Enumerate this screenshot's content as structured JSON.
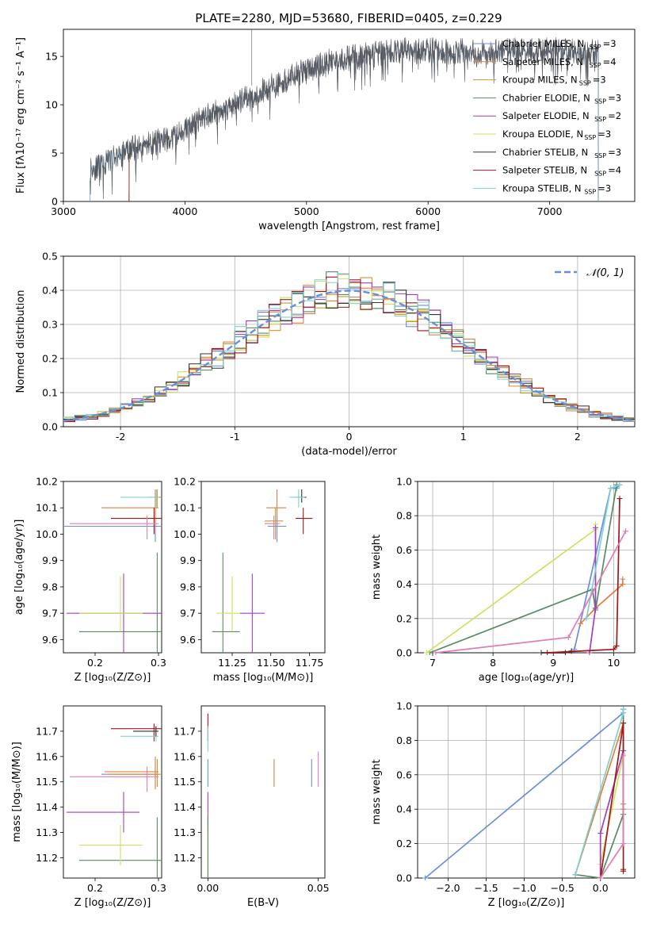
{
  "figure": {
    "title": "PLATE=2280, MJD=53680, FIBERID=0405, z=0.229"
  },
  "colors": {
    "Chabrier MILES": "#6a8fd8",
    "Salpeter MILES": "#e08040",
    "Kroupa MILES": "#d2962a",
    "Chabrier ELODIE": "#5a8a62",
    "Salpeter ELODIE": "#a040c0",
    "Kroupa ELODIE": "#cfe060",
    "Chabrier STELIB": "#333333",
    "Salpeter STELIB": "#a01818",
    "Kroupa STELIB": "#80d0d0",
    "pink": "#e07cb8",
    "grid": "#b0b0b0"
  },
  "chart_data": [
    {
      "id": "spectrum",
      "type": "line",
      "title": "PLATE=2280, MJD=53680, FIBERID=0405, z=0.229",
      "xlabel": "wavelength [Angstrom, rest frame]",
      "ylabel": "Flux [fλ10⁻¹⁷ erg cm⁻² s⁻¹ A⁻¹]",
      "xlim": [
        3000,
        7700
      ],
      "ylim": [
        0,
        17.8
      ],
      "xticks": [
        3000,
        4000,
        5000,
        6000,
        7000
      ],
      "yticks": [
        0,
        5,
        10,
        15
      ],
      "grid": false,
      "legend_position": "top-right",
      "legend": [
        {
          "model": "Chabrier MILES",
          "label": "Chabrier MILES, N",
          "sub": "SSP",
          "tail": "=3"
        },
        {
          "model": "Salpeter MILES",
          "label": "Salpeter MILES, N",
          "sub": "SSP",
          "tail": "=4"
        },
        {
          "model": "Kroupa MILES",
          "label": "Kroupa MILES, N",
          "sub": "SSP",
          "tail": "=3"
        },
        {
          "model": "Chabrier ELODIE",
          "label": "Chabrier ELODIE, N",
          "sub": "SSP",
          "tail": "=3"
        },
        {
          "model": "Salpeter ELODIE",
          "label": "Salpeter ELODIE, N",
          "sub": "SSP",
          "tail": "=2"
        },
        {
          "model": "Kroupa ELODIE",
          "label": "Kroupa ELODIE, N",
          "sub": "SSP",
          "tail": "=3"
        },
        {
          "model": "Chabrier STELIB",
          "label": "Chabrier STELIB, N",
          "sub": "SSP",
          "tail": "=3"
        },
        {
          "model": "Salpeter STELIB",
          "label": "Salpeter STELIB, N",
          "sub": "SSP",
          "tail": "=4"
        },
        {
          "model": "Kroupa STELIB",
          "label": "Kroupa STELIB, N",
          "sub": "SSP",
          "tail": "=3"
        }
      ],
      "data_wavelength_range": [
        3220,
        7400
      ],
      "continuum": {
        "x": [
          3220,
          3300,
          3500,
          3700,
          3900,
          4000,
          4200,
          4400,
          4600,
          4800,
          5000,
          5200,
          5400,
          5600,
          5800,
          6000,
          6200,
          6500,
          6800,
          7100,
          7400
        ],
        "y": [
          3.5,
          3.5,
          5.2,
          6.0,
          6.5,
          7.5,
          9.0,
          10.0,
          11.2,
          12.4,
          13.6,
          14.5,
          15.0,
          15.3,
          15.6,
          15.6,
          15.5,
          15.5,
          15.6,
          15.6,
          15.4
        ]
      }
    },
    {
      "id": "residuals",
      "type": "line",
      "xlabel": "(data-model)/error",
      "ylabel": "Normed distribution",
      "xlim": [
        -2.5,
        2.5
      ],
      "ylim": [
        0,
        0.5
      ],
      "xticks": [
        -2,
        -1,
        0,
        1,
        2
      ],
      "yticks": [
        0.0,
        0.1,
        0.2,
        0.3,
        0.4,
        0.5
      ],
      "grid": true,
      "legend_position": "top-right",
      "reference_label": "𝒩(0, 1)",
      "reference": {
        "mean": 0,
        "sigma": 1
      },
      "histogram": {
        "bin_width": 0.1,
        "range": [
          -2.5,
          2.5
        ]
      }
    },
    {
      "id": "age_vs_Z",
      "type": "scatter",
      "xlabel": "Z [log₁₀(Z/Z⊙)]",
      "ylabel": "age  [log₁₀(age/yr)]",
      "xlim": [
        0.15,
        0.305
      ],
      "ylim": [
        9.55,
        10.2
      ],
      "xticks": [
        0.2,
        0.3
      ],
      "xticklabels": [
        "0.2",
        "0.3"
      ],
      "yticks": [
        9.6,
        9.7,
        9.8,
        9.9,
        10.0,
        10.1,
        10.2
      ],
      "points": [
        {
          "model": "Chabrier MILES",
          "x": 0.295,
          "y": 10.03,
          "xl": 0.145,
          "xh": 0.31,
          "yl": 9.97,
          "yh": 10.17
        },
        {
          "model": "Salpeter MILES",
          "x": 0.295,
          "y": 10.1,
          "xl": 0.21,
          "xh": 0.3,
          "yl": 10.03,
          "yh": 10.17
        },
        {
          "model": "Kroupa MILES",
          "x": 0.298,
          "y": 10.14,
          "xl": 0.285,
          "xh": 0.31,
          "yl": 10.1,
          "yh": 10.17
        },
        {
          "model": "Chabrier ELODIE",
          "x": 0.298,
          "y": 9.63,
          "xl": 0.175,
          "xh": 0.31,
          "yl": 9.55,
          "yh": 9.93
        },
        {
          "model": "Salpeter ELODIE",
          "x": 0.245,
          "y": 9.7,
          "xl": 0.155,
          "xh": 0.305,
          "yl": 9.55,
          "yh": 9.85
        },
        {
          "model": "Kroupa ELODIE",
          "x": 0.24,
          "y": 9.7,
          "xl": 0.175,
          "xh": 0.275,
          "yl": 9.63,
          "yh": 9.84
        },
        {
          "model": "Salpeter STELIB",
          "x": 0.293,
          "y": 10.06,
          "xl": 0.225,
          "xh": 0.31,
          "yl": 10.0,
          "yh": 10.1
        },
        {
          "model": "Kroupa STELIB",
          "x": 0.297,
          "y": 10.14,
          "xl": 0.24,
          "xh": 0.3,
          "yl": 10.1,
          "yh": 10.17
        },
        {
          "model": "pink",
          "x": 0.282,
          "y": 10.04,
          "xl": 0.16,
          "xh": 0.3,
          "yl": 9.98,
          "yh": 10.07
        }
      ]
    },
    {
      "id": "age_vs_mass",
      "type": "scatter",
      "xlabel": "mass [log₁₀(M/M⊙)]",
      "xlim": [
        11.05,
        11.85
      ],
      "ylim": [
        9.55,
        10.2
      ],
      "xticks": [
        11.25,
        11.5,
        11.75
      ],
      "xticklabels": [
        "11.25",
        "11.50",
        "11.75"
      ],
      "yticks": [
        9.6,
        9.7,
        9.8,
        9.9,
        10.0,
        10.1,
        10.2
      ],
      "points": [
        {
          "model": "Chabrier MILES",
          "x": 11.54,
          "y": 10.03,
          "xl": 11.48,
          "xh": 11.6,
          "yl": 9.97,
          "yh": 10.06
        },
        {
          "model": "Salpeter MILES",
          "x": 11.54,
          "y": 10.1,
          "xl": 11.47,
          "xh": 11.6,
          "yl": 10.06,
          "yh": 10.17
        },
        {
          "model": "Kroupa MILES",
          "x": 11.53,
          "y": 10.05,
          "xl": 11.46,
          "xh": 11.58,
          "yl": 9.98,
          "yh": 10.1
        },
        {
          "model": "Chabrier ELODIE",
          "x": 11.19,
          "y": 9.63,
          "xl": 11.12,
          "xh": 11.3,
          "yl": 9.55,
          "yh": 9.93
        },
        {
          "model": "Salpeter ELODIE",
          "x": 11.38,
          "y": 9.7,
          "xl": 11.3,
          "xh": 11.46,
          "yl": 9.55,
          "yh": 9.85
        },
        {
          "model": "Kroupa ELODIE",
          "x": 11.25,
          "y": 9.7,
          "xl": 11.15,
          "xh": 11.3,
          "yl": 9.63,
          "yh": 9.84
        },
        {
          "model": "Chabrier STELIB",
          "x": 11.7,
          "y": 10.14,
          "xl": 11.67,
          "xh": 11.73,
          "yl": 10.12,
          "yh": 10.17
        },
        {
          "model": "Salpeter STELIB",
          "x": 11.71,
          "y": 10.06,
          "xl": 11.66,
          "xh": 11.77,
          "yl": 10.0,
          "yh": 10.1
        },
        {
          "model": "Kroupa STELIB",
          "x": 11.68,
          "y": 10.14,
          "xl": 11.62,
          "xh": 11.72,
          "yl": 10.1,
          "yh": 10.17
        },
        {
          "model": "pink",
          "x": 11.52,
          "y": 10.04,
          "xl": 11.46,
          "xh": 11.56,
          "yl": 9.98,
          "yh": 10.07
        }
      ]
    },
    {
      "id": "massweight_vs_age",
      "type": "line",
      "xlabel": "age  [log₁₀(age/yr)]",
      "ylabel": "mass weight",
      "xlim": [
        6.75,
        10.35
      ],
      "ylim": [
        0,
        1.0
      ],
      "xticks": [
        7,
        8,
        9,
        10
      ],
      "yticks": [
        0.0,
        0.2,
        0.4,
        0.6,
        0.8,
        1.0
      ],
      "grid": true,
      "series": [
        {
          "model": "Chabrier MILES",
          "x": [
            9.35,
            9.95,
            10.05,
            10.1
          ],
          "y": [
            0.02,
            0.96,
            0.96,
            0.98
          ]
        },
        {
          "model": "Salpeter MILES",
          "x": [
            9.45,
            9.7,
            10.15,
            10.15
          ],
          "y": [
            0.17,
            0.26,
            0.4,
            0.43
          ]
        },
        {
          "model": "Chabrier ELODIE",
          "x": [
            6.95,
            9.65,
            9.7,
            10.05
          ],
          "y": [
            0.0,
            0.37,
            0.25,
            0.98
          ]
        },
        {
          "model": "Kroupa ELODIE",
          "x": [
            6.9,
            9.7,
            9.7
          ],
          "y": [
            0.0,
            0.72,
            0.75
          ]
        },
        {
          "model": "Salpeter ELODIE",
          "x": [
            9.6,
            9.7,
            9.7
          ],
          "y": [
            0.0,
            0.26,
            0.73
          ]
        },
        {
          "model": "Chabrier STELIB",
          "x": [
            8.8,
            9.2,
            9.3
          ],
          "y": [
            0.0,
            0.0,
            0.01
          ]
        },
        {
          "model": "Salpeter STELIB",
          "x": [
            8.9,
            10.0,
            10.05,
            10.1
          ],
          "y": [
            0.0,
            0.02,
            0.04,
            0.9
          ]
        },
        {
          "model": "Kroupa STELIB",
          "x": [
            9.55,
            9.95,
            10.1
          ],
          "y": [
            0.2,
            0.96,
            0.98
          ]
        },
        {
          "model": "pink",
          "x": [
            7.05,
            9.25,
            10.2
          ],
          "y": [
            0.0,
            0.09,
            0.71
          ]
        }
      ]
    },
    {
      "id": "mass_vs_Z",
      "type": "scatter",
      "xlabel": "Z [log₁₀(Z/Z⊙)]",
      "ylabel": "mass [log₁₀(M/M⊙)]",
      "xlim": [
        0.15,
        0.305
      ],
      "ylim": [
        11.12,
        11.8
      ],
      "xticks": [
        0.2,
        0.3
      ],
      "xticklabels": [
        "0.2",
        "0.3"
      ],
      "yticks": [
        11.2,
        11.3,
        11.4,
        11.5,
        11.6,
        11.7
      ],
      "yticklabels": [
        "11.2",
        "11.3",
        "11.4",
        "11.5",
        "11.6",
        "11.7"
      ],
      "points": [
        {
          "model": "Chabrier MILES",
          "x": 0.295,
          "y": 11.53,
          "xl": 0.21,
          "xh": 0.3,
          "yl": 11.48,
          "yh": 11.59
        },
        {
          "model": "Salpeter MILES",
          "x": 0.295,
          "y": 11.54,
          "xl": 0.215,
          "xh": 0.3,
          "yl": 11.47,
          "yh": 11.6
        },
        {
          "model": "Kroupa MILES",
          "x": 0.298,
          "y": 11.53,
          "xl": 0.22,
          "xh": 0.31,
          "yl": 11.48,
          "yh": 11.59
        },
        {
          "model": "Chabrier ELODIE",
          "x": 0.298,
          "y": 11.19,
          "xl": 0.175,
          "xh": 0.31,
          "yl": 11.12,
          "yh": 11.36
        },
        {
          "model": "Salpeter ELODIE",
          "x": 0.245,
          "y": 11.38,
          "xl": 0.155,
          "xh": 0.27,
          "yl": 11.3,
          "yh": 11.46
        },
        {
          "model": "Kroupa ELODIE",
          "x": 0.24,
          "y": 11.25,
          "xl": 0.175,
          "xh": 0.275,
          "yl": 11.17,
          "yh": 11.33
        },
        {
          "model": "Salpeter STELIB",
          "x": 0.293,
          "y": 11.71,
          "xl": 0.225,
          "xh": 0.31,
          "yl": 11.66,
          "yh": 11.73
        },
        {
          "model": "Kroupa STELIB",
          "x": 0.296,
          "y": 11.68,
          "xl": 0.24,
          "xh": 0.3,
          "yl": 11.66,
          "yh": 11.72
        },
        {
          "model": "Chabrier STELIB",
          "x": 0.296,
          "y": 11.7,
          "xl": 0.26,
          "xh": 0.3,
          "yl": 11.68,
          "yh": 11.72
        },
        {
          "model": "pink",
          "x": 0.282,
          "y": 11.52,
          "xl": 0.16,
          "xh": 0.3,
          "yl": 11.46,
          "yh": 11.56
        }
      ]
    },
    {
      "id": "mass_vs_ebv",
      "type": "scatter",
      "xlabel": "E(B-V)",
      "xlim": [
        -0.003,
        0.053
      ],
      "ylim": [
        11.12,
        11.8
      ],
      "xticks": [
        0.0,
        0.05
      ],
      "xticklabels": [
        "0.00",
        "0.05"
      ],
      "yticks": [
        11.2,
        11.3,
        11.4,
        11.5,
        11.6,
        11.7
      ],
      "yticklabels": [
        "11.2",
        "11.3",
        "11.4",
        "11.5",
        "11.6",
        "11.7"
      ],
      "points": [
        {
          "model": "Chabrier MILES",
          "x": 0.0,
          "y": 11.53,
          "yl": 11.48,
          "yh": 11.59
        },
        {
          "model": "Salpeter MILES",
          "x": 0.03,
          "y": 11.52,
          "yl": 11.48,
          "yh": 11.59
        },
        {
          "model": "Chabrier MILES",
          "x": 0.047,
          "y": 11.53,
          "yl": 11.48,
          "yh": 11.59
        },
        {
          "model": "pink",
          "x": 0.05,
          "y": 11.52,
          "yl": 11.48,
          "yh": 11.62
        },
        {
          "model": "Salpeter STELIB",
          "x": 0.0,
          "y": 11.71,
          "yl": 11.66,
          "yh": 11.77
        },
        {
          "model": "Kroupa STELIB",
          "x": 0.0,
          "y": 11.68,
          "yl": 11.62,
          "yh": 11.72
        },
        {
          "model": "Salpeter ELODIE",
          "x": 0.0,
          "y": 11.38,
          "yl": 11.3,
          "yh": 11.46
        },
        {
          "model": "Kroupa ELODIE",
          "x": 0.0,
          "y": 11.25,
          "yl": 11.12,
          "yh": 11.34
        },
        {
          "model": "Chabrier ELODIE",
          "x": 0.0,
          "y": 11.19,
          "yl": 11.12,
          "yh": 11.36
        }
      ]
    },
    {
      "id": "massweight_vs_Z",
      "type": "line",
      "xlabel": "Z [log₁₀(Z/Z⊙)]",
      "ylabel": "mass weight",
      "xlim": [
        -2.4,
        0.45
      ],
      "ylim": [
        0,
        1.0
      ],
      "xticks": [
        -2.0,
        -1.5,
        -1.0,
        -0.5,
        0.0
      ],
      "xticklabels": [
        "−2.0",
        "−1.5",
        "−1.0",
        "−0.5",
        "0.0"
      ],
      "yticks": [
        0.0,
        0.2,
        0.4,
        0.6,
        0.8,
        1.0
      ],
      "grid": true,
      "series": [
        {
          "model": "Chabrier MILES",
          "x": [
            -2.3,
            0.3,
            0.3
          ],
          "y": [
            0.0,
            0.96,
            0.98
          ]
        },
        {
          "model": "Salpeter MILES",
          "x": [
            -0.33,
            0.3,
            0.3,
            0.3
          ],
          "y": [
            0.02,
            0.9,
            0.4,
            0.43
          ]
        },
        {
          "model": "Chabrier ELODIE",
          "x": [
            -0.33,
            0.0,
            0.3,
            0.3
          ],
          "y": [
            0.02,
            0.0,
            0.37,
            0.98
          ]
        },
        {
          "model": "Kroupa ELODIE",
          "x": [
            0.0,
            0.0,
            0.3
          ],
          "y": [
            0.0,
            0.08,
            0.72
          ]
        },
        {
          "model": "Salpeter ELODIE",
          "x": [
            0.0,
            0.0,
            0.3
          ],
          "y": [
            0.0,
            0.26,
            0.74
          ]
        },
        {
          "model": "Salpeter STELIB",
          "x": [
            0.0,
            0.3,
            0.3,
            0.3
          ],
          "y": [
            0.0,
            0.9,
            0.04,
            0.05
          ]
        },
        {
          "model": "Kroupa STELIB",
          "x": [
            -0.33,
            0.3,
            0.3
          ],
          "y": [
            0.02,
            0.96,
            0.98
          ]
        },
        {
          "model": "pink",
          "x": [
            0.0,
            0.3,
            0.3
          ],
          "y": [
            0.0,
            0.2,
            0.71
          ]
        }
      ]
    }
  ]
}
